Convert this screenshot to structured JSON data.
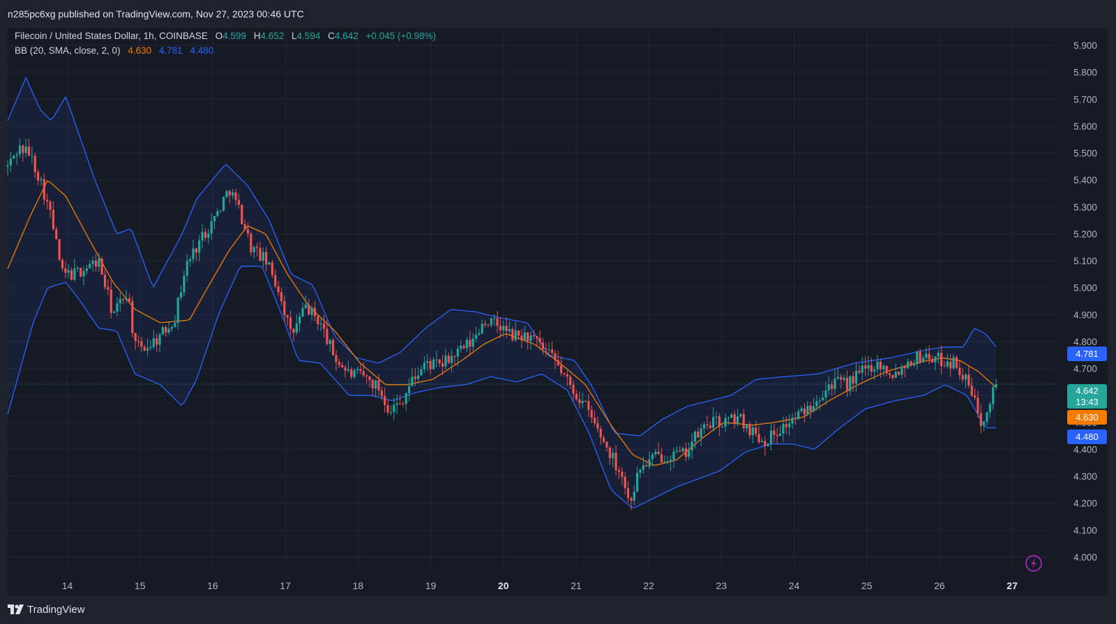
{
  "header": {
    "published": "n285pc6xg published on TradingView.com, Nov 27, 2023 00:46 UTC"
  },
  "legend": {
    "symbol": "Filecoin / United States Dollar, 1h, COINBASE",
    "o_label": "O",
    "o_value": "4.599",
    "h_label": "H",
    "h_value": "4.652",
    "l_label": "L",
    "l_value": "4.594",
    "c_label": "C",
    "c_value": "4.642",
    "change": "+0.045 (+0.98%)",
    "bb_label": "BB (20, SMA, close, 2, 0)",
    "bb_basis": "4.630",
    "bb_upper": "4.781",
    "bb_lower": "4.480"
  },
  "badges": {
    "upper": "4.781",
    "price": "4.642",
    "countdown": "13:43",
    "basis": "4.630",
    "lower": "4.480"
  },
  "footer": {
    "brand": "TradingView"
  },
  "colors": {
    "background": "#1e222d",
    "plot_background": "#161a25",
    "up": "#26a69a",
    "down": "#ef5350",
    "basis": "#f57c00",
    "band": "#2962ff"
  },
  "chart_data": {
    "type": "candlestick",
    "symbol": "Filecoin / United States Dollar",
    "interval": "1h",
    "exchange": "COINBASE",
    "x_ticks": [
      "14",
      "15",
      "16",
      "17",
      "18",
      "19",
      "20",
      "21",
      "22",
      "23",
      "24",
      "25",
      "26",
      "27"
    ],
    "y_ticks": [
      "4.000",
      "4.100",
      "4.200",
      "4.300",
      "4.400",
      "4.500",
      "4.600",
      "4.700",
      "4.800",
      "4.900",
      "5.000",
      "5.100",
      "5.200",
      "5.300",
      "5.400",
      "5.500",
      "5.600",
      "5.700",
      "5.800",
      "5.900"
    ],
    "ylim": [
      4.0,
      5.9
    ],
    "xlim_days": [
      "Nov 13 2023 07:00",
      "Nov 27 2023 07:00"
    ],
    "last_price": 4.642,
    "bollinger": {
      "basis_last": 4.63,
      "upper_last": 4.781,
      "lower_last": 4.48,
      "upper_anchors": [
        [
          0.0,
          5.62
        ],
        [
          0.25,
          5.78
        ],
        [
          0.45,
          5.66
        ],
        [
          0.6,
          5.62
        ],
        [
          0.8,
          5.71
        ],
        [
          1.2,
          5.4
        ],
        [
          1.5,
          5.2
        ],
        [
          1.7,
          5.22
        ],
        [
          2.0,
          5.0
        ],
        [
          2.4,
          5.2
        ],
        [
          2.6,
          5.33
        ],
        [
          3.0,
          5.46
        ],
        [
          3.3,
          5.38
        ],
        [
          3.6,
          5.25
        ],
        [
          3.9,
          5.05
        ],
        [
          4.2,
          5.01
        ],
        [
          4.5,
          4.82
        ],
        [
          4.8,
          4.74
        ],
        [
          5.1,
          4.72
        ],
        [
          5.4,
          4.76
        ],
        [
          5.75,
          4.85
        ],
        [
          6.1,
          4.92
        ],
        [
          6.45,
          4.91
        ],
        [
          6.75,
          4.89
        ],
        [
          7.15,
          4.87
        ],
        [
          7.45,
          4.75
        ],
        [
          7.8,
          4.73
        ],
        [
          8.05,
          4.63
        ],
        [
          8.35,
          4.46
        ],
        [
          8.7,
          4.45
        ],
        [
          9.0,
          4.51
        ],
        [
          9.35,
          4.56
        ],
        [
          9.65,
          4.58
        ],
        [
          9.95,
          4.6
        ],
        [
          10.3,
          4.66
        ],
        [
          10.7,
          4.67
        ],
        [
          11.15,
          4.68
        ],
        [
          11.65,
          4.72
        ],
        [
          12.15,
          4.74
        ],
        [
          12.65,
          4.77
        ],
        [
          12.9,
          4.78
        ],
        [
          13.15,
          4.78
        ],
        [
          13.3,
          4.85
        ],
        [
          13.45,
          4.83
        ],
        [
          13.6,
          4.781
        ]
      ],
      "lower_anchors": [
        [
          0.0,
          4.53
        ],
        [
          0.35,
          4.87
        ],
        [
          0.55,
          5.0
        ],
        [
          0.8,
          5.02
        ],
        [
          1.0,
          4.95
        ],
        [
          1.25,
          4.85
        ],
        [
          1.5,
          4.84
        ],
        [
          1.75,
          4.68
        ],
        [
          2.1,
          4.64
        ],
        [
          2.4,
          4.56
        ],
        [
          2.6,
          4.66
        ],
        [
          2.9,
          4.9
        ],
        [
          3.2,
          5.08
        ],
        [
          3.5,
          5.08
        ],
        [
          3.8,
          4.88
        ],
        [
          4.0,
          4.73
        ],
        [
          4.3,
          4.72
        ],
        [
          4.7,
          4.6
        ],
        [
          5.0,
          4.6
        ],
        [
          5.3,
          4.58
        ],
        [
          5.6,
          4.61
        ],
        [
          5.95,
          4.63
        ],
        [
          6.3,
          4.64
        ],
        [
          6.65,
          4.67
        ],
        [
          7.0,
          4.65
        ],
        [
          7.35,
          4.68
        ],
        [
          7.7,
          4.62
        ],
        [
          8.0,
          4.46
        ],
        [
          8.3,
          4.25
        ],
        [
          8.6,
          4.18
        ],
        [
          8.9,
          4.22
        ],
        [
          9.2,
          4.26
        ],
        [
          9.5,
          4.29
        ],
        [
          9.8,
          4.32
        ],
        [
          10.15,
          4.39
        ],
        [
          10.5,
          4.42
        ],
        [
          10.8,
          4.42
        ],
        [
          11.1,
          4.4
        ],
        [
          11.45,
          4.48
        ],
        [
          11.8,
          4.55
        ],
        [
          12.2,
          4.58
        ],
        [
          12.6,
          4.6
        ],
        [
          12.9,
          4.64
        ],
        [
          13.2,
          4.6
        ],
        [
          13.45,
          4.48
        ],
        [
          13.6,
          4.48
        ]
      ],
      "basis_anchors": [
        [
          0.0,
          5.07
        ],
        [
          0.3,
          5.26
        ],
        [
          0.55,
          5.4
        ],
        [
          0.8,
          5.34
        ],
        [
          1.1,
          5.19
        ],
        [
          1.45,
          5.02
        ],
        [
          1.75,
          4.92
        ],
        [
          2.1,
          4.87
        ],
        [
          2.5,
          4.88
        ],
        [
          2.75,
          5.0
        ],
        [
          3.05,
          5.14
        ],
        [
          3.3,
          5.23
        ],
        [
          3.55,
          5.2
        ],
        [
          3.85,
          5.05
        ],
        [
          4.15,
          4.93
        ],
        [
          4.5,
          4.84
        ],
        [
          4.85,
          4.72
        ],
        [
          5.2,
          4.64
        ],
        [
          5.5,
          4.64
        ],
        [
          5.85,
          4.66
        ],
        [
          6.25,
          4.73
        ],
        [
          6.55,
          4.79
        ],
        [
          6.85,
          4.83
        ],
        [
          7.25,
          4.79
        ],
        [
          7.6,
          4.72
        ],
        [
          7.95,
          4.64
        ],
        [
          8.3,
          4.49
        ],
        [
          8.6,
          4.38
        ],
        [
          8.9,
          4.34
        ],
        [
          9.2,
          4.36
        ],
        [
          9.55,
          4.44
        ],
        [
          9.85,
          4.5
        ],
        [
          10.25,
          4.49
        ],
        [
          10.55,
          4.5
        ],
        [
          10.95,
          4.52
        ],
        [
          11.3,
          4.58
        ],
        [
          11.7,
          4.64
        ],
        [
          12.1,
          4.69
        ],
        [
          12.5,
          4.72
        ],
        [
          12.85,
          4.74
        ],
        [
          13.1,
          4.73
        ],
        [
          13.35,
          4.69
        ],
        [
          13.6,
          4.63
        ]
      ]
    },
    "price_path_anchors": [
      [
        0.0,
        5.45
      ],
      [
        0.15,
        5.52
      ],
      [
        0.3,
        5.5
      ],
      [
        0.45,
        5.4
      ],
      [
        0.6,
        5.26
      ],
      [
        0.75,
        5.05
      ],
      [
        0.9,
        5.05
      ],
      [
        1.05,
        5.07
      ],
      [
        1.25,
        5.1
      ],
      [
        1.45,
        4.9
      ],
      [
        1.65,
        4.99
      ],
      [
        1.75,
        4.78
      ],
      [
        1.9,
        4.78
      ],
      [
        2.1,
        4.82
      ],
      [
        2.3,
        4.89
      ],
      [
        2.45,
        5.08
      ],
      [
        2.65,
        5.18
      ],
      [
        2.85,
        5.26
      ],
      [
        3.05,
        5.37
      ],
      [
        3.2,
        5.28
      ],
      [
        3.35,
        5.15
      ],
      [
        3.55,
        5.1
      ],
      [
        3.75,
        4.98
      ],
      [
        3.9,
        4.82
      ],
      [
        4.1,
        4.93
      ],
      [
        4.3,
        4.87
      ],
      [
        4.5,
        4.74
      ],
      [
        4.7,
        4.68
      ],
      [
        4.9,
        4.67
      ],
      [
        5.1,
        4.63
      ],
      [
        5.25,
        4.55
      ],
      [
        5.4,
        4.57
      ],
      [
        5.55,
        4.65
      ],
      [
        5.75,
        4.72
      ],
      [
        5.95,
        4.71
      ],
      [
        6.2,
        4.76
      ],
      [
        6.4,
        4.8
      ],
      [
        6.55,
        4.88
      ],
      [
        6.75,
        4.86
      ],
      [
        6.95,
        4.82
      ],
      [
        7.15,
        4.82
      ],
      [
        7.3,
        4.79
      ],
      [
        7.55,
        4.72
      ],
      [
        7.75,
        4.63
      ],
      [
        7.95,
        4.56
      ],
      [
        8.1,
        4.48
      ],
      [
        8.3,
        4.38
      ],
      [
        8.45,
        4.31
      ],
      [
        8.55,
        4.2
      ],
      [
        8.7,
        4.33
      ],
      [
        8.9,
        4.37
      ],
      [
        9.1,
        4.38
      ],
      [
        9.3,
        4.38
      ],
      [
        9.45,
        4.44
      ],
      [
        9.65,
        4.5
      ],
      [
        9.85,
        4.5
      ],
      [
        10.05,
        4.52
      ],
      [
        10.2,
        4.48
      ],
      [
        10.4,
        4.43
      ],
      [
        10.6,
        4.47
      ],
      [
        10.8,
        4.51
      ],
      [
        11.0,
        4.55
      ],
      [
        11.15,
        4.6
      ],
      [
        11.35,
        4.65
      ],
      [
        11.55,
        4.64
      ],
      [
        11.75,
        4.69
      ],
      [
        11.95,
        4.72
      ],
      [
        12.2,
        4.68
      ],
      [
        12.4,
        4.73
      ],
      [
        12.6,
        4.75
      ],
      [
        12.85,
        4.73
      ],
      [
        13.05,
        4.72
      ],
      [
        13.25,
        4.62
      ],
      [
        13.4,
        4.5
      ],
      [
        13.5,
        4.58
      ],
      [
        13.6,
        4.642
      ]
    ]
  }
}
